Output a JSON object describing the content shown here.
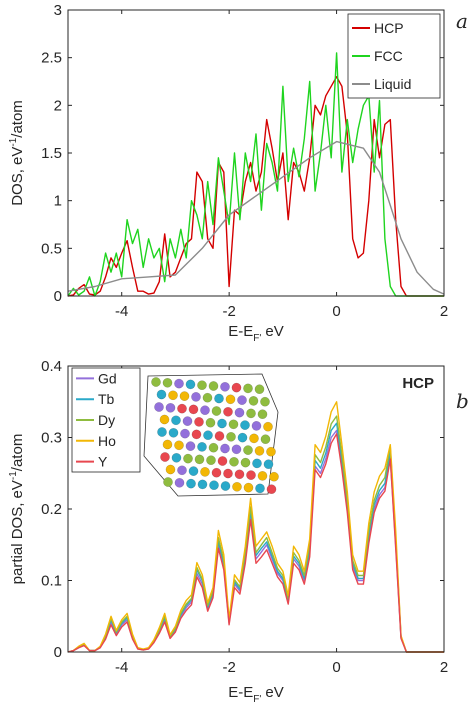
{
  "chart_data": [
    {
      "type": "line",
      "panel_label": "a",
      "ylabel": "DOS, eV$^{-1}$/atom",
      "ylabel_main": "DOS, eV",
      "ylabel_sup": "-1",
      "ylabel_tail": "/atom",
      "xlabel_main": "E-E",
      "xlabel_sub": "F'",
      "xlabel_tail": " eV",
      "xlim": [
        -5,
        2
      ],
      "ylim": [
        0,
        3
      ],
      "xticks": [
        -4,
        -2,
        0,
        2
      ],
      "yticks": [
        0,
        0.5,
        1,
        1.5,
        2,
        2.5,
        3
      ],
      "xtick_labels": [
        "-4",
        "-2",
        "0",
        "2"
      ],
      "ytick_labels": [
        "0",
        "0.5",
        "1",
        "1.5",
        "2",
        "2.5",
        "3"
      ],
      "legend_position": "top-right",
      "series": [
        {
          "name": "HCP",
          "color": "#d40000",
          "x": [
            -5.0,
            -4.9,
            -4.8,
            -4.7,
            -4.6,
            -4.5,
            -4.4,
            -4.3,
            -4.2,
            -4.1,
            -4.0,
            -3.9,
            -3.8,
            -3.7,
            -3.6,
            -3.5,
            -3.4,
            -3.3,
            -3.2,
            -3.1,
            -3.0,
            -2.9,
            -2.8,
            -2.7,
            -2.6,
            -2.5,
            -2.4,
            -2.3,
            -2.2,
            -2.1,
            -2.0,
            -1.9,
            -1.8,
            -1.7,
            -1.6,
            -1.5,
            -1.4,
            -1.3,
            -1.2,
            -1.1,
            -1.0,
            -0.9,
            -0.8,
            -0.7,
            -0.6,
            -0.5,
            -0.4,
            -0.3,
            -0.2,
            -0.1,
            0.0,
            0.1,
            0.2,
            0.3,
            0.4,
            0.5,
            0.6,
            0.7,
            0.8,
            0.9,
            1.0,
            1.1,
            1.2,
            1.3,
            1.4,
            1.5,
            1.6,
            1.7,
            1.8,
            1.9,
            2.0
          ],
          "y": [
            0.0,
            0.01,
            0.08,
            0.12,
            0.02,
            0.01,
            0.05,
            0.2,
            0.4,
            0.3,
            0.45,
            0.58,
            0.3,
            0.05,
            0.05,
            0.02,
            0.03,
            0.15,
            0.65,
            0.2,
            0.25,
            0.4,
            0.55,
            0.6,
            1.3,
            1.2,
            0.6,
            0.5,
            1.4,
            1.3,
            0.1,
            0.9,
            0.85,
            1.2,
            1.4,
            1.1,
            1.3,
            1.85,
            1.55,
            1.2,
            1.5,
            0.8,
            1.4,
            1.3,
            1.1,
            1.45,
            2.0,
            1.9,
            2.1,
            2.2,
            2.3,
            2.2,
            1.7,
            0.6,
            0.4,
            0.45,
            1.0,
            1.85,
            1.45,
            1.8,
            1.85,
            0.8,
            0.1,
            0.0,
            0.0,
            0.0,
            0.0,
            0.0,
            0.0,
            0.0,
            0.0
          ]
        },
        {
          "name": "FCC",
          "color": "#1fd41f",
          "x": [
            -5.0,
            -4.9,
            -4.8,
            -4.7,
            -4.6,
            -4.5,
            -4.4,
            -4.3,
            -4.2,
            -4.1,
            -4.0,
            -3.9,
            -3.8,
            -3.7,
            -3.6,
            -3.5,
            -3.4,
            -3.3,
            -3.2,
            -3.1,
            -3.0,
            -2.9,
            -2.8,
            -2.7,
            -2.6,
            -2.5,
            -2.4,
            -2.3,
            -2.2,
            -2.1,
            -2.0,
            -1.9,
            -1.8,
            -1.7,
            -1.6,
            -1.5,
            -1.4,
            -1.3,
            -1.2,
            -1.1,
            -1.0,
            -0.9,
            -0.8,
            -0.7,
            -0.6,
            -0.5,
            -0.4,
            -0.3,
            -0.2,
            -0.1,
            0.0,
            0.1,
            0.2,
            0.3,
            0.4,
            0.5,
            0.6,
            0.7,
            0.8,
            0.9,
            1.0,
            1.1,
            1.2,
            1.3,
            1.4,
            1.5,
            1.6,
            1.7,
            1.8,
            1.9,
            2.0
          ],
          "y": [
            0.0,
            0.08,
            0.01,
            0.05,
            0.2,
            0.0,
            0.15,
            0.45,
            0.25,
            0.45,
            0.2,
            0.8,
            0.55,
            0.7,
            0.3,
            0.6,
            0.4,
            0.5,
            0.15,
            0.6,
            0.4,
            0.7,
            0.4,
            1.0,
            0.85,
            0.6,
            1.2,
            0.75,
            1.45,
            1.1,
            0.75,
            1.5,
            0.8,
            1.5,
            1.2,
            1.7,
            0.9,
            1.6,
            1.4,
            1.1,
            2.2,
            1.2,
            1.55,
            1.25,
            1.65,
            2.25,
            1.1,
            1.5,
            2.0,
            1.45,
            2.55,
            1.3,
            1.85,
            1.4,
            1.75,
            2.0,
            2.1,
            1.3,
            2.05,
            0.6,
            0.1,
            0.0,
            0.0,
            0.0,
            0.0,
            0.0,
            0.0,
            0.0,
            0.0,
            0.0,
            0.0
          ]
        },
        {
          "name": "Liquid",
          "color": "#8c8c8c",
          "x": [
            -5.0,
            -4.5,
            -4.0,
            -3.5,
            -3.0,
            -2.5,
            -2.0,
            -1.5,
            -1.0,
            -0.5,
            0.0,
            0.5,
            0.8,
            1.0,
            1.2,
            1.5,
            1.8,
            2.0
          ],
          "y": [
            0.05,
            0.1,
            0.18,
            0.2,
            0.22,
            0.5,
            0.85,
            1.05,
            1.25,
            1.45,
            1.62,
            1.55,
            1.3,
            0.95,
            0.6,
            0.25,
            0.07,
            0.02
          ]
        }
      ]
    },
    {
      "type": "line",
      "panel_label": "b",
      "annotation": "HCP",
      "ylabel": "partial DOS, eV$^{-1}$/atom",
      "ylabel_main": "partial DOS, eV",
      "ylabel_sup": "-1",
      "ylabel_tail": "/atom",
      "xlabel_main": "E-E",
      "xlabel_sub": "F'",
      "xlabel_tail": " eV",
      "xlim": [
        -5,
        2
      ],
      "ylim": [
        0,
        0.4
      ],
      "xticks": [
        -4,
        -2,
        0,
        2
      ],
      "yticks": [
        0,
        0.1,
        0.2,
        0.3,
        0.4
      ],
      "xtick_labels": [
        "-4",
        "-2",
        "0",
        "2"
      ],
      "ytick_labels": [
        "0",
        "0.1",
        "0.2",
        "0.3",
        "0.4"
      ],
      "legend_position": "top-left",
      "inset_image": "hcp-crystal-structure",
      "x": [
        -5.0,
        -4.9,
        -4.8,
        -4.7,
        -4.6,
        -4.5,
        -4.4,
        -4.3,
        -4.2,
        -4.1,
        -4.0,
        -3.9,
        -3.8,
        -3.7,
        -3.6,
        -3.5,
        -3.4,
        -3.3,
        -3.2,
        -3.1,
        -3.0,
        -2.9,
        -2.8,
        -2.7,
        -2.6,
        -2.5,
        -2.4,
        -2.3,
        -2.2,
        -2.1,
        -2.0,
        -1.9,
        -1.8,
        -1.7,
        -1.6,
        -1.5,
        -1.4,
        -1.3,
        -1.2,
        -1.1,
        -1.0,
        -0.9,
        -0.8,
        -0.7,
        -0.6,
        -0.5,
        -0.4,
        -0.3,
        -0.2,
        -0.1,
        0.0,
        0.1,
        0.2,
        0.3,
        0.4,
        0.5,
        0.6,
        0.7,
        0.8,
        0.9,
        1.0,
        1.1,
        1.2,
        1.3,
        1.4,
        1.5,
        1.6,
        1.7,
        1.8,
        1.9,
        2.0
      ],
      "series": [
        {
          "name": "Gd",
          "color": "#9370db",
          "y": [
            0.0,
            0.002,
            0.006,
            0.01,
            0.002,
            0.002,
            0.006,
            0.02,
            0.042,
            0.025,
            0.038,
            0.045,
            0.02,
            0.005,
            0.003,
            0.005,
            0.014,
            0.028,
            0.045,
            0.02,
            0.03,
            0.05,
            0.062,
            0.07,
            0.11,
            0.095,
            0.06,
            0.08,
            0.15,
            0.12,
            0.04,
            0.095,
            0.085,
            0.13,
            0.19,
            0.13,
            0.14,
            0.15,
            0.13,
            0.11,
            0.1,
            0.07,
            0.13,
            0.12,
            0.1,
            0.14,
            0.26,
            0.25,
            0.27,
            0.3,
            0.31,
            0.26,
            0.2,
            0.12,
            0.1,
            0.1,
            0.16,
            0.2,
            0.22,
            0.23,
            0.27,
            0.15,
            0.02,
            0.0,
            0.0,
            0.0,
            0.0,
            0.0,
            0.0,
            0.0,
            0.0
          ]
        },
        {
          "name": "Tb",
          "color": "#2aa9c9",
          "y": [
            0.0,
            0.002,
            0.007,
            0.011,
            0.002,
            0.002,
            0.007,
            0.022,
            0.045,
            0.027,
            0.04,
            0.048,
            0.022,
            0.005,
            0.003,
            0.005,
            0.015,
            0.03,
            0.048,
            0.021,
            0.032,
            0.052,
            0.065,
            0.073,
            0.115,
            0.1,
            0.063,
            0.083,
            0.155,
            0.124,
            0.042,
            0.098,
            0.088,
            0.134,
            0.198,
            0.135,
            0.145,
            0.154,
            0.134,
            0.113,
            0.103,
            0.072,
            0.134,
            0.124,
            0.103,
            0.144,
            0.268,
            0.257,
            0.278,
            0.31,
            0.32,
            0.268,
            0.206,
            0.124,
            0.103,
            0.103,
            0.165,
            0.206,
            0.226,
            0.236,
            0.278,
            0.155,
            0.021,
            0.0,
            0.0,
            0.0,
            0.0,
            0.0,
            0.0,
            0.0,
            0.0
          ]
        },
        {
          "name": "Dy",
          "color": "#8fbc3f",
          "y": [
            0.0,
            0.002,
            0.007,
            0.011,
            0.002,
            0.002,
            0.007,
            0.023,
            0.047,
            0.028,
            0.042,
            0.05,
            0.023,
            0.005,
            0.003,
            0.005,
            0.016,
            0.031,
            0.05,
            0.022,
            0.033,
            0.054,
            0.067,
            0.075,
            0.118,
            0.102,
            0.065,
            0.085,
            0.16,
            0.128,
            0.043,
            0.101,
            0.091,
            0.139,
            0.203,
            0.139,
            0.15,
            0.16,
            0.139,
            0.117,
            0.107,
            0.075,
            0.139,
            0.128,
            0.107,
            0.15,
            0.276,
            0.265,
            0.287,
            0.319,
            0.33,
            0.276,
            0.212,
            0.128,
            0.107,
            0.107,
            0.17,
            0.212,
            0.233,
            0.244,
            0.287,
            0.16,
            0.022,
            0.0,
            0.0,
            0.0,
            0.0,
            0.0,
            0.0,
            0.0,
            0.0
          ]
        },
        {
          "name": "Ho",
          "color": "#f2b705",
          "y": [
            0.0,
            0.002,
            0.008,
            0.012,
            0.002,
            0.002,
            0.008,
            0.025,
            0.05,
            0.03,
            0.045,
            0.054,
            0.025,
            0.006,
            0.004,
            0.006,
            0.017,
            0.034,
            0.054,
            0.024,
            0.036,
            0.058,
            0.072,
            0.08,
            0.125,
            0.108,
            0.069,
            0.09,
            0.17,
            0.136,
            0.046,
            0.108,
            0.097,
            0.148,
            0.215,
            0.148,
            0.158,
            0.168,
            0.148,
            0.124,
            0.113,
            0.079,
            0.148,
            0.136,
            0.113,
            0.158,
            0.29,
            0.279,
            0.302,
            0.336,
            0.35,
            0.29,
            0.224,
            0.136,
            0.113,
            0.113,
            0.18,
            0.224,
            0.246,
            0.257,
            0.29,
            0.17,
            0.023,
            0.0,
            0.0,
            0.0,
            0.0,
            0.0,
            0.0,
            0.0,
            0.0
          ]
        },
        {
          "name": "Y",
          "color": "#e8474f",
          "y": [
            0.0,
            0.002,
            0.006,
            0.009,
            0.002,
            0.002,
            0.006,
            0.018,
            0.038,
            0.023,
            0.035,
            0.042,
            0.018,
            0.004,
            0.003,
            0.004,
            0.013,
            0.026,
            0.042,
            0.019,
            0.028,
            0.047,
            0.058,
            0.066,
            0.105,
            0.09,
            0.057,
            0.076,
            0.145,
            0.115,
            0.038,
            0.09,
            0.081,
            0.124,
            0.185,
            0.124,
            0.133,
            0.143,
            0.124,
            0.105,
            0.095,
            0.067,
            0.124,
            0.115,
            0.095,
            0.133,
            0.255,
            0.244,
            0.263,
            0.292,
            0.305,
            0.255,
            0.195,
            0.115,
            0.095,
            0.095,
            0.152,
            0.195,
            0.215,
            0.225,
            0.27,
            0.145,
            0.019,
            0.0,
            0.0,
            0.0,
            0.0,
            0.0,
            0.0,
            0.0,
            0.0
          ]
        }
      ]
    }
  ]
}
